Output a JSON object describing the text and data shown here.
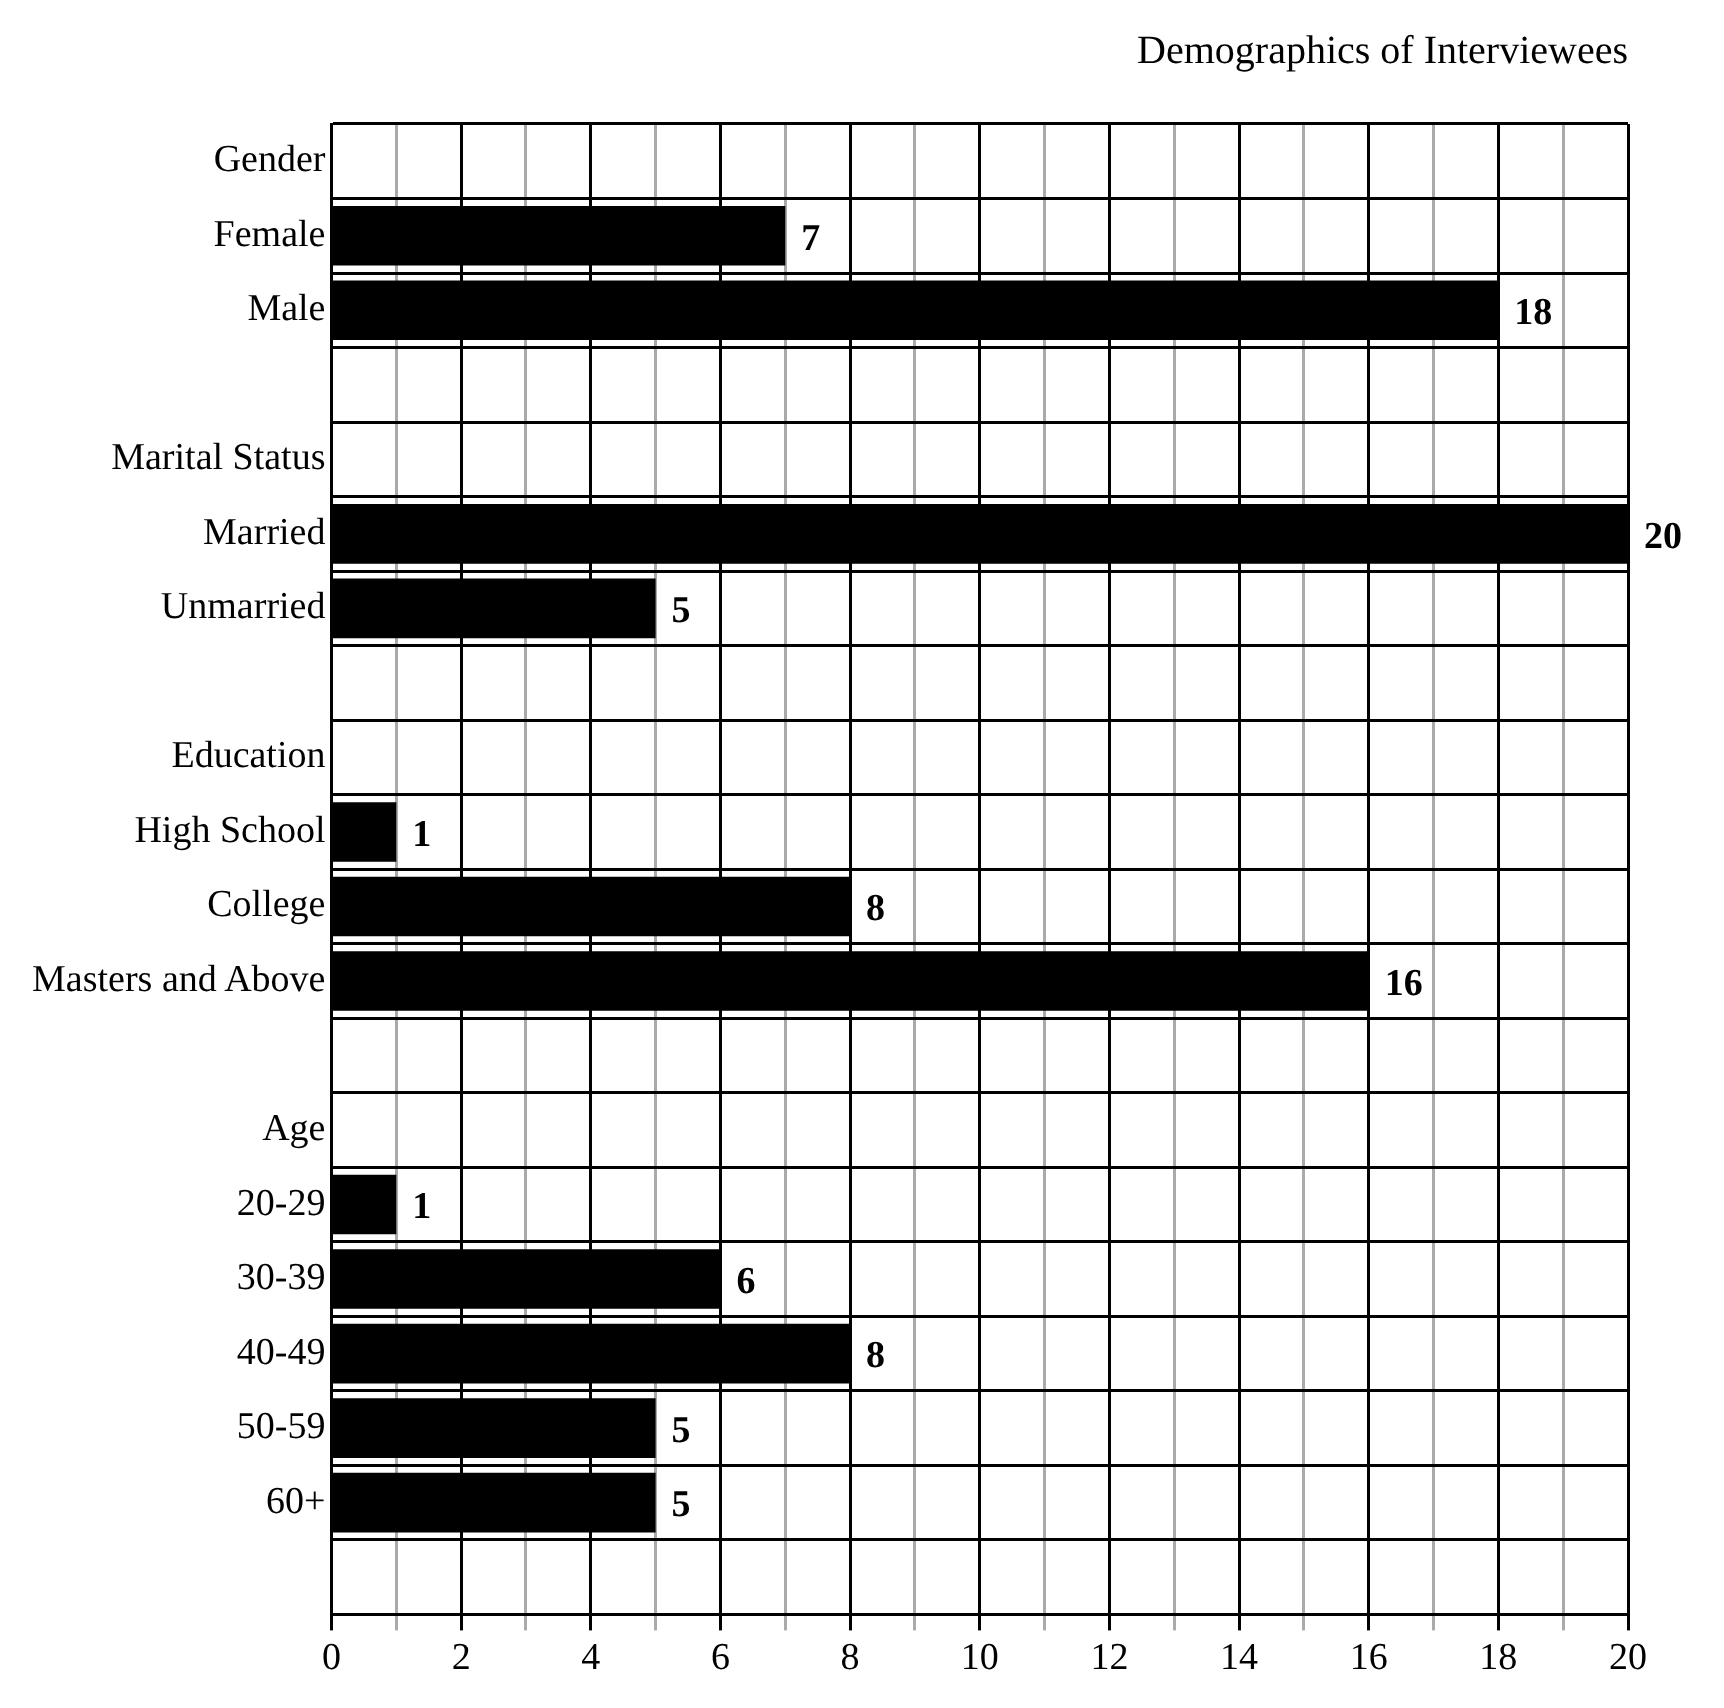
{
  "chart_data": {
    "type": "bar",
    "orientation": "horizontal",
    "title": "Demographics of Interviewees",
    "categories": [
      "Gender",
      "Female",
      "Male",
      null,
      "Marital Status",
      "Married",
      "Unmarried",
      null,
      "Education",
      "High School",
      "College",
      "Masters and Above",
      null,
      "Age",
      "20-29",
      "30-39",
      "40-49",
      "50-59",
      "60+",
      null
    ],
    "values": [
      null,
      7,
      18,
      null,
      null,
      20,
      5,
      null,
      null,
      1,
      8,
      16,
      null,
      null,
      1,
      6,
      8,
      5,
      5,
      null
    ],
    "color": "#000000",
    "xlim": [
      0,
      20
    ],
    "xticks": [
      0,
      {
        "value": 1,
        "label": null
      },
      2,
      {
        "value": 3,
        "label": null
      },
      4,
      {
        "value": 5,
        "label": null
      },
      6,
      {
        "value": 7,
        "label": null
      },
      8,
      {
        "value": 9,
        "label": null
      },
      10,
      {
        "value": 11,
        "label": null
      },
      12,
      {
        "value": 13,
        "label": null
      },
      14,
      {
        "value": 15,
        "label": null
      },
      16,
      {
        "value": 17,
        "label": null
      },
      18,
      {
        "value": 19,
        "label": null
      },
      20
    ],
    "grid": true,
    "data_labels": true,
    "legend": false
  }
}
